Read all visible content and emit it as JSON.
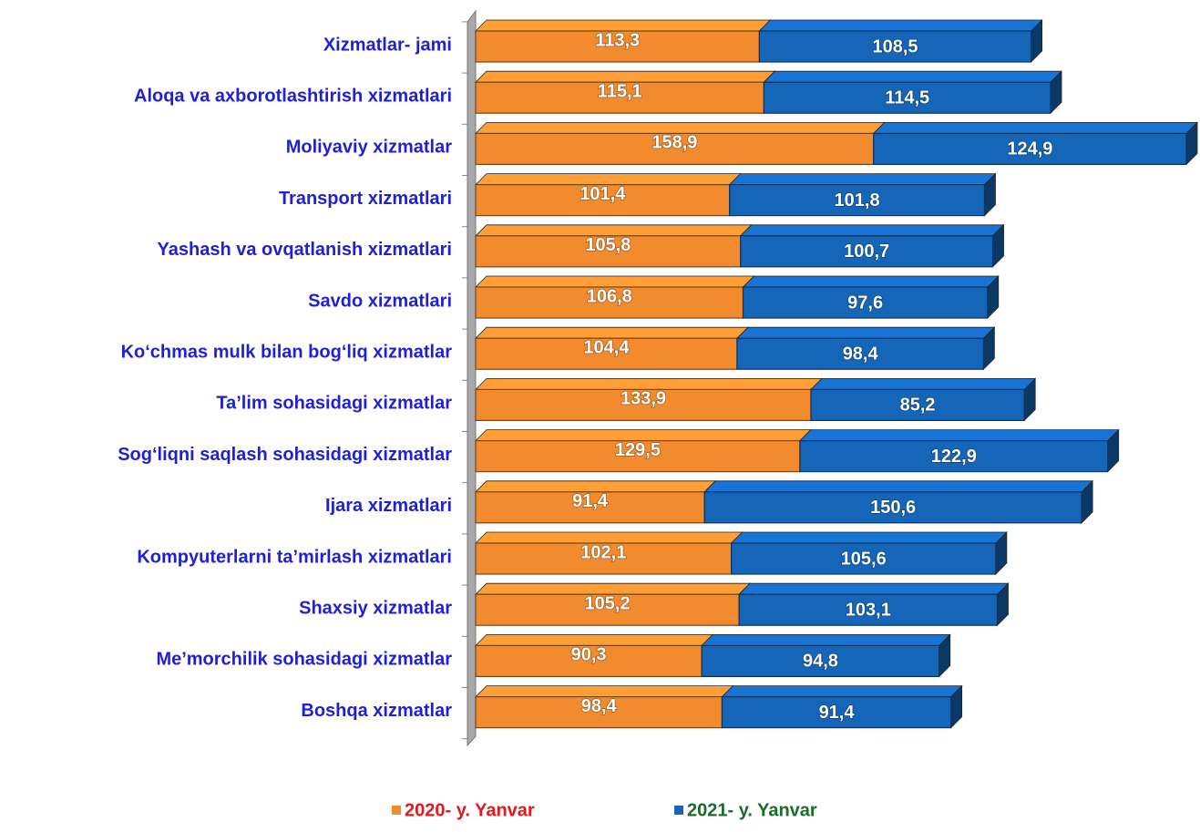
{
  "chart_data": {
    "type": "stacked-bar-3d",
    "categories": [
      "Xizmatlar- jami",
      "Aloqa va axborotlashtirish xizmatlari",
      "Moliyaviy xizmatlar",
      "Transport xizmatlari",
      "Yashash va ovqatlanish xizmatlari",
      "Savdo xizmatlari",
      "Ko‘chmas mulk bilan bog‘liq xizmatlar",
      "Ta’lim sohasidagi xizmatlar",
      "Sog‘liqni saqlash sohasidagi xizmatlar",
      "Ijara xizmatlari",
      "Kompyuterlarni ta’mirlash xizmatlari",
      "Shaxsiy xizmatlar",
      "Me’morchilik sohasidagi xizmatlar",
      "Boshqa xizmatlar"
    ],
    "series": [
      {
        "name": "2020- y. Yanvar",
        "color": "#f28a2e",
        "legend_text_color": "#e8161b",
        "values": [
          113.3,
          115.1,
          158.9,
          101.4,
          105.8,
          106.8,
          104.4,
          133.9,
          129.5,
          91.4,
          102.1,
          105.2,
          90.3,
          98.4
        ],
        "value_labels": [
          "113,3",
          "115,1",
          "158,9",
          "101,4",
          "105,8",
          "106,8",
          "104,4",
          "133,9",
          "129,5",
          "91,4",
          "102,1",
          "105,2",
          "90,3",
          "98,4"
        ]
      },
      {
        "name": "2021- y. Yanvar",
        "color": "#1565b8",
        "legend_text_color": "#1b6b2a",
        "values": [
          108.5,
          114.5,
          124.9,
          101.8,
          100.7,
          97.6,
          98.4,
          85.2,
          122.9,
          150.6,
          105.6,
          103.1,
          94.8,
          91.4
        ],
        "value_labels": [
          "108,5",
          "114,5",
          "124,9",
          "101,8",
          "100,7",
          "97,6",
          "98,4",
          "85,2",
          "122,9",
          "150,6",
          "105,6",
          "103,1",
          "94,8",
          "91,4"
        ]
      }
    ],
    "category_label_color": "#1f1fd6"
  }
}
